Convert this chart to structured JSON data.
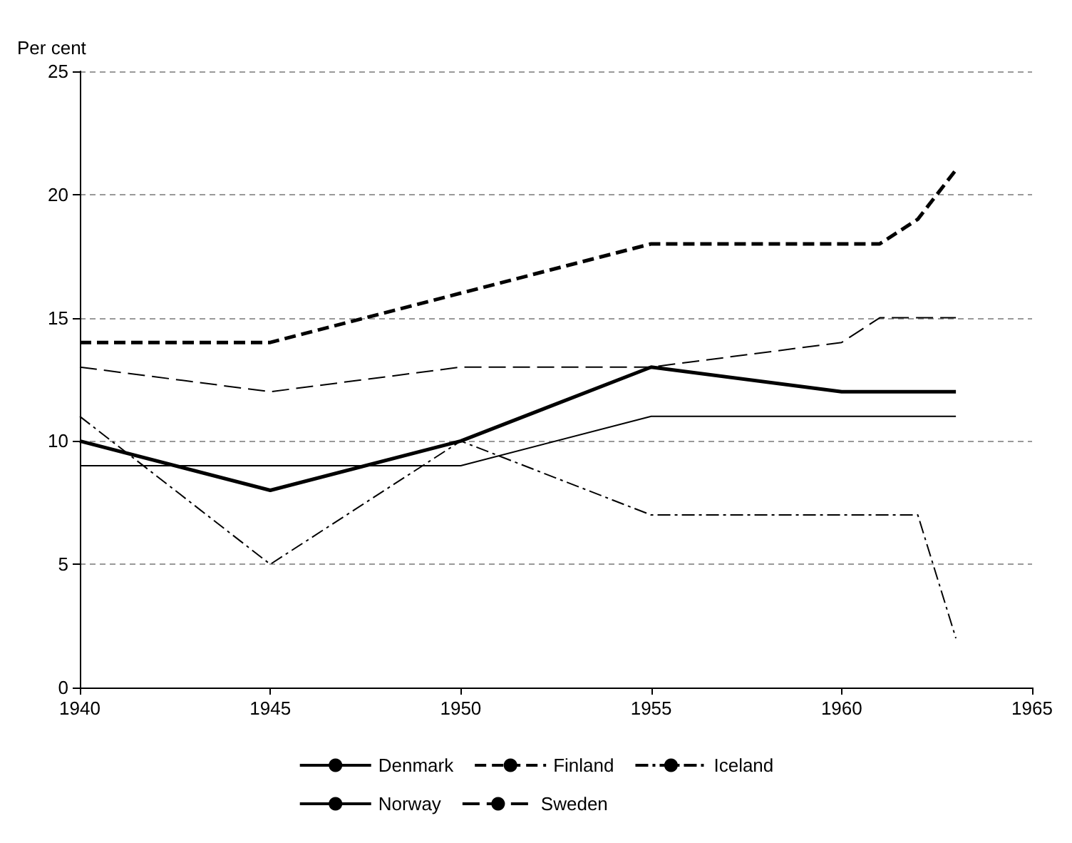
{
  "chart_data": {
    "type": "line",
    "ylabel": "Per cent",
    "xlim": [
      1940,
      1965
    ],
    "xticks": [
      1940,
      1945,
      1950,
      1955,
      1960,
      1965
    ],
    "ylim": [
      0,
      25
    ],
    "yticks": [
      0,
      5,
      10,
      15,
      20,
      25
    ],
    "grid": "y",
    "legend": "bottom",
    "marker": "none",
    "series": [
      {
        "name": "Denmark",
        "color": "#000000",
        "line_style": "solid",
        "x": [
          1940,
          1945,
          1950,
          1955,
          1960,
          1963
        ],
        "values": [
          10,
          8,
          10,
          13,
          12,
          12
        ]
      },
      {
        "name": "Finland",
        "color": "#000000",
        "line_style": "dashed",
        "x": [
          1940,
          1945,
          1950,
          1955,
          1960,
          1961,
          1962,
          1963
        ],
        "values": [
          14,
          14,
          16,
          18,
          18,
          18,
          19,
          21
        ]
      },
      {
        "name": "Iceland",
        "color": "#000000",
        "line_style": "dotted",
        "x": [
          1940,
          1945,
          1950,
          1955,
          1960,
          1962,
          1963
        ],
        "values": [
          11,
          5,
          10,
          7,
          7,
          7,
          2
        ]
      },
      {
        "name": "Norway",
        "color": "#000000",
        "line_style": "solid",
        "x": [
          1940,
          1950,
          1955,
          1963
        ],
        "values": [
          9,
          9,
          11,
          11
        ]
      },
      {
        "name": "Sweden",
        "color": "#000000",
        "line_style": "dashed",
        "x": [
          1940,
          1945,
          1950,
          1955,
          1960,
          1961,
          1963
        ],
        "values": [
          13,
          12,
          13,
          13,
          14,
          15,
          15
        ]
      }
    ]
  }
}
